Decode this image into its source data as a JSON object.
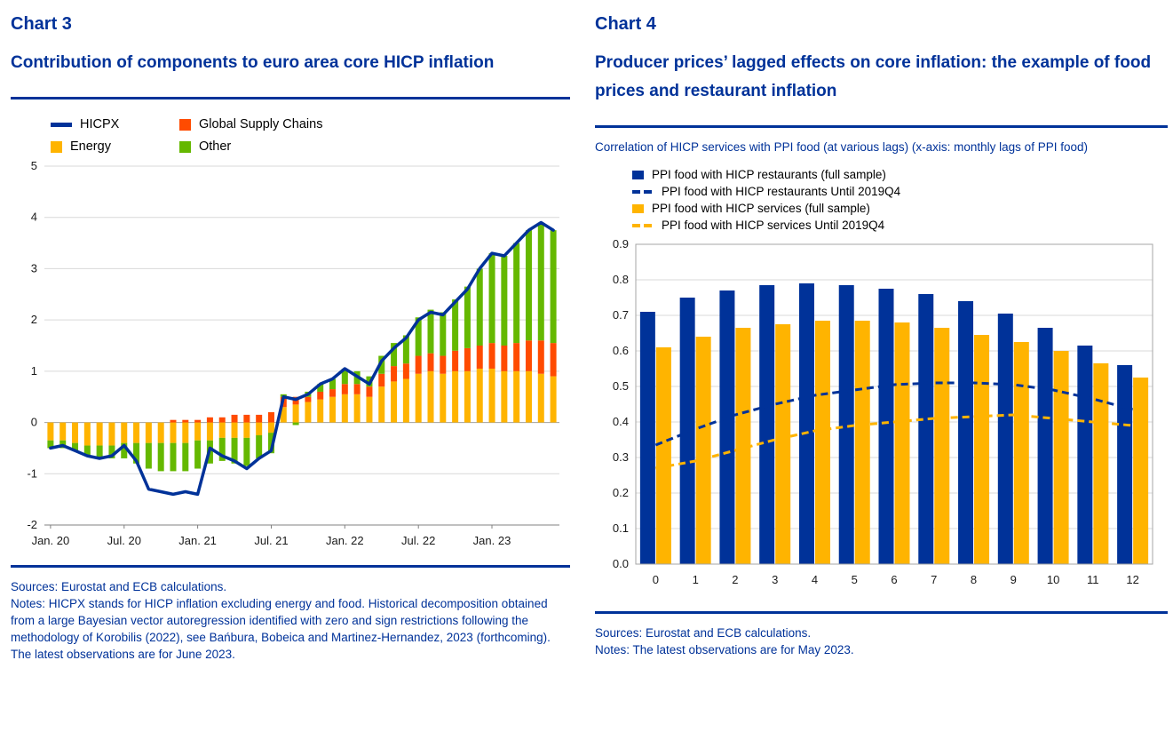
{
  "colors": {
    "ecb_blue": "#003299",
    "energy_yellow": "#FFB400",
    "gsc_red": "#FF4B00",
    "other_green": "#65B800",
    "grid": "#D9D9D9",
    "zero_line": "#A0A0A0",
    "axis": "#808080",
    "plot_border": "#A6A6A6"
  },
  "chart3": {
    "label": "Chart 3",
    "title": "Contribution of components to euro area core HICP inflation",
    "legend": [
      {
        "label": "HICPX",
        "type": "line",
        "color": "#003299"
      },
      {
        "label": "Global Supply Chains",
        "type": "square",
        "color": "#FF4B00"
      },
      {
        "label": "Energy",
        "type": "square",
        "color": "#FFB400"
      },
      {
        "label": "Other",
        "type": "square",
        "color": "#65B800"
      }
    ],
    "sources": "Sources: Eurostat and ECB calculations.",
    "notes": "Notes: HICPX stands for HICP inflation excluding energy and food. Historical decomposition obtained from a large Bayesian vector autoregression identified with zero and sign restrictions following the methodology of Korobilis (2022), see Bańbura, Bobeica and Martinez-Hernandez, 2023 (forthcoming).",
    "notes_last": "The latest observations are for June 2023."
  },
  "chart4": {
    "label": "Chart 4",
    "title": "Producer prices’ lagged effects on core inflation: the example of food prices and restaurant inflation",
    "caption": "Correlation of HICP services with PPI food (at various lags) (x-axis: monthly lags of PPI food)",
    "legend": [
      {
        "label": "PPI food with HICP restaurants (full sample)",
        "type": "bar",
        "color": "#003299"
      },
      {
        "label": "PPI food with HICP restaurants Until 2019Q4",
        "type": "dash",
        "color": "#003299"
      },
      {
        "label": "PPI food with HICP services (full sample)",
        "type": "bar",
        "color": "#FFB400"
      },
      {
        "label": "PPI food with HICP services Until 2019Q4",
        "type": "dash",
        "color": "#FFB400"
      }
    ],
    "sources": "Sources: Eurostat and ECB calculations.",
    "notes": "Notes: The latest observations are for May 2023."
  },
  "chart_data": [
    {
      "type": "bar",
      "subtype": "stacked-bars-with-line",
      "title": "Contribution of components to euro area core HICP inflation",
      "x_unit": "month",
      "x_start": "Jan. 2020",
      "x_end": "Jun. 2023",
      "x_labels": [
        "Jan. 20",
        "Jul. 20",
        "Jan. 21",
        "Jul. 21",
        "Jan. 22",
        "Jul. 22",
        "Jan. 23"
      ],
      "x_label_positions": [
        0,
        6,
        12,
        18,
        24,
        30,
        36
      ],
      "ylim": [
        -2,
        5
      ],
      "yticks": [
        5,
        4,
        3,
        2,
        1,
        0,
        -1,
        -2
      ],
      "grid": true,
      "legend_position": "top",
      "series": [
        {
          "name": "Energy",
          "type": "bar",
          "color": "#FFB400",
          "values": [
            -0.35,
            -0.35,
            -0.4,
            -0.45,
            -0.45,
            -0.45,
            -0.4,
            -0.4,
            -0.4,
            -0.4,
            -0.4,
            -0.4,
            -0.35,
            -0.35,
            -0.3,
            -0.3,
            -0.3,
            -0.25,
            -0.2,
            0.3,
            0.35,
            0.4,
            0.45,
            0.5,
            0.55,
            0.55,
            0.5,
            0.7,
            0.8,
            0.85,
            0.95,
            1.0,
            0.95,
            1.0,
            1.0,
            1.05,
            1.05,
            1.0,
            1.0,
            1.0,
            0.95,
            0.9
          ]
        },
        {
          "name": "Global Supply Chains",
          "type": "bar",
          "color": "#FF4B00",
          "values": [
            0,
            0,
            0,
            0,
            0,
            0,
            0,
            0,
            0,
            0,
            0.05,
            0.05,
            0.05,
            0.1,
            0.1,
            0.15,
            0.15,
            0.15,
            0.2,
            0.2,
            0.15,
            0.1,
            0.15,
            0.15,
            0.2,
            0.2,
            0.2,
            0.25,
            0.3,
            0.3,
            0.35,
            0.35,
            0.35,
            0.4,
            0.45,
            0.45,
            0.5,
            0.5,
            0.55,
            0.6,
            0.65,
            0.65
          ]
        },
        {
          "name": "Other",
          "type": "bar",
          "color": "#65B800",
          "values": [
            -0.15,
            -0.15,
            -0.15,
            -0.2,
            -0.25,
            -0.25,
            -0.3,
            -0.4,
            -0.5,
            -0.55,
            -0.55,
            -0.55,
            -0.55,
            -0.45,
            -0.45,
            -0.5,
            -0.55,
            -0.45,
            -0.4,
            0.05,
            -0.05,
            0.1,
            0.15,
            0.2,
            0.3,
            0.25,
            0.2,
            0.35,
            0.45,
            0.55,
            0.75,
            0.85,
            0.85,
            1.0,
            1.2,
            1.5,
            1.75,
            1.75,
            1.95,
            2.15,
            2.3,
            2.2
          ]
        },
        {
          "name": "HICPX",
          "type": "line",
          "color": "#003299",
          "values": [
            -0.5,
            -0.45,
            -0.55,
            -0.65,
            -0.7,
            -0.65,
            -0.45,
            -0.75,
            -1.3,
            -1.35,
            -1.4,
            -1.35,
            -1.4,
            -0.5,
            -0.65,
            -0.75,
            -0.9,
            -0.7,
            -0.55,
            0.5,
            0.45,
            0.55,
            0.75,
            0.85,
            1.05,
            0.9,
            0.75,
            1.2,
            1.45,
            1.65,
            2.0,
            2.15,
            2.1,
            2.35,
            2.6,
            3.0,
            3.3,
            3.25,
            3.5,
            3.75,
            3.9,
            3.75
          ]
        }
      ]
    },
    {
      "type": "bar",
      "subtype": "grouped-bars-with-dashed-lines",
      "title": "Correlation of HICP services with PPI food (at various lags)",
      "xlabel": "monthly lags of PPI food",
      "categories": [
        0,
        1,
        2,
        3,
        4,
        5,
        6,
        7,
        8,
        9,
        10,
        11,
        12
      ],
      "ylim": [
        0,
        0.9
      ],
      "yticks": [
        "0.9",
        "0.8",
        "0.7",
        "0.6",
        "0.5",
        "0.4",
        "0.3",
        "0.2",
        "0.1",
        "0.0"
      ],
      "grid": true,
      "legend_position": "top",
      "series": [
        {
          "name": "PPI food with HICP restaurants (full sample)",
          "type": "bar",
          "color": "#003299",
          "values": [
            0.71,
            0.75,
            0.77,
            0.785,
            0.79,
            0.785,
            0.775,
            0.76,
            0.74,
            0.705,
            0.665,
            0.615,
            0.56
          ]
        },
        {
          "name": "PPI food with HICP services (full sample)",
          "type": "bar",
          "color": "#FFB400",
          "values": [
            0.61,
            0.64,
            0.665,
            0.675,
            0.685,
            0.685,
            0.68,
            0.665,
            0.645,
            0.625,
            0.6,
            0.565,
            0.525
          ]
        },
        {
          "name": "PPI food with HICP restaurants Until 2019Q4",
          "type": "dashed-line",
          "color": "#003299",
          "values": [
            0.335,
            0.38,
            0.42,
            0.45,
            0.475,
            0.49,
            0.505,
            0.51,
            0.51,
            0.505,
            0.49,
            0.465,
            0.435
          ]
        },
        {
          "name": "PPI food with HICP services Until 2019Q4",
          "type": "dashed-line",
          "color": "#FFB400",
          "values": [
            0.27,
            0.29,
            0.32,
            0.35,
            0.375,
            0.39,
            0.4,
            0.41,
            0.415,
            0.42,
            0.41,
            0.4,
            0.39
          ]
        }
      ]
    }
  ]
}
